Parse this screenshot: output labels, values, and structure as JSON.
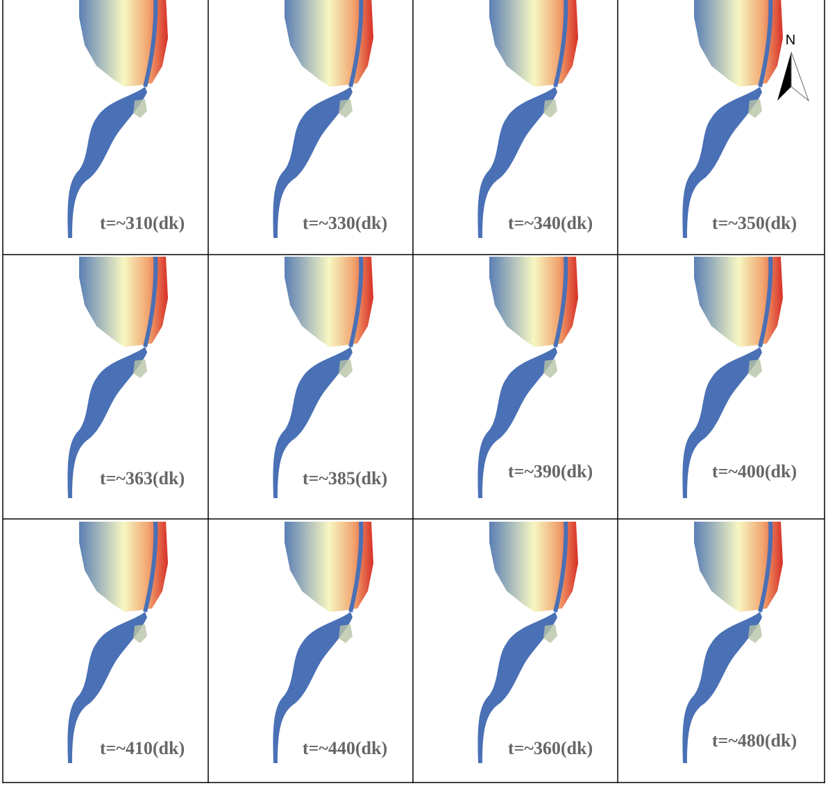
{
  "panels": [
    {
      "label": "t=~310(dk)"
    },
    {
      "label": "t=~330(dk)"
    },
    {
      "label": "t=~340(dk)"
    },
    {
      "label": "t=~350(dk)"
    },
    {
      "label": "t=~363(dk)"
    },
    {
      "label": "t=~385(dk)"
    },
    {
      "label": "t=~390(dk)"
    },
    {
      "label": "t=~400(dk)"
    },
    {
      "label": "t=~410(dk)"
    },
    {
      "label": "t=~440(dk)"
    },
    {
      "label": "t=~360(dk)"
    },
    {
      "label": "t=~480(dk)"
    }
  ],
  "north_arrow": {
    "label": "N"
  }
}
